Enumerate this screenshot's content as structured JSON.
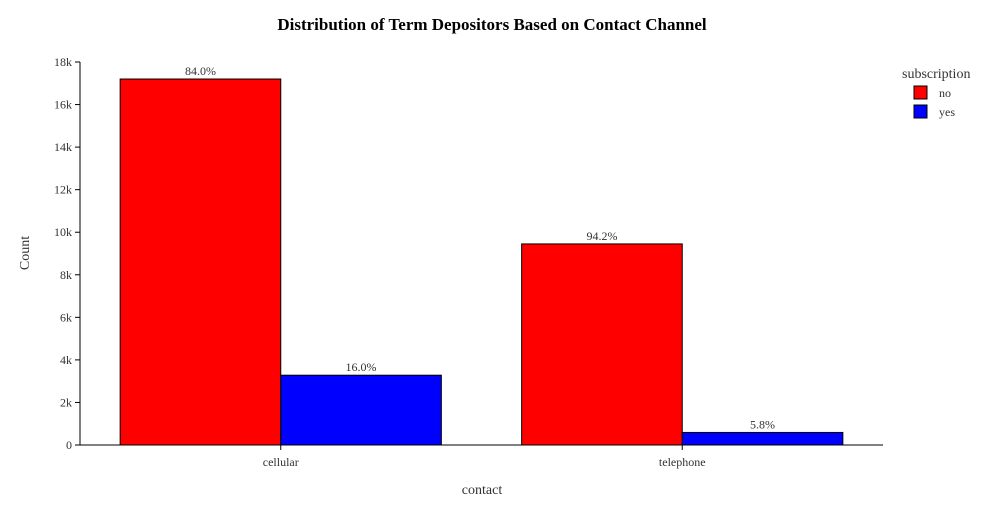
{
  "chart_data": {
    "type": "bar",
    "title": "Distribution of Term Depositors Based on Contact Channel",
    "xlabel": "contact",
    "ylabel": "Count",
    "categories": [
      "cellular",
      "telephone"
    ],
    "ylim": [
      0,
      18000
    ],
    "yticks": [
      0,
      2000,
      4000,
      6000,
      8000,
      10000,
      12000,
      14000,
      16000,
      18000
    ],
    "ytick_labels": [
      "0",
      "2k",
      "4k",
      "6k",
      "8k",
      "10k",
      "12k",
      "14k",
      "16k",
      "18k"
    ],
    "grid": false,
    "legend": {
      "title": "subscription",
      "position": "top-right"
    },
    "series": [
      {
        "name": "no",
        "color": "#ff0000",
        "values": [
          17200,
          9450
        ],
        "labels": [
          "84.0%",
          "94.2%"
        ]
      },
      {
        "name": "yes",
        "color": "#0000ff",
        "values": [
          3280,
          590
        ],
        "labels": [
          "16.0%",
          "5.8%"
        ]
      }
    ]
  }
}
